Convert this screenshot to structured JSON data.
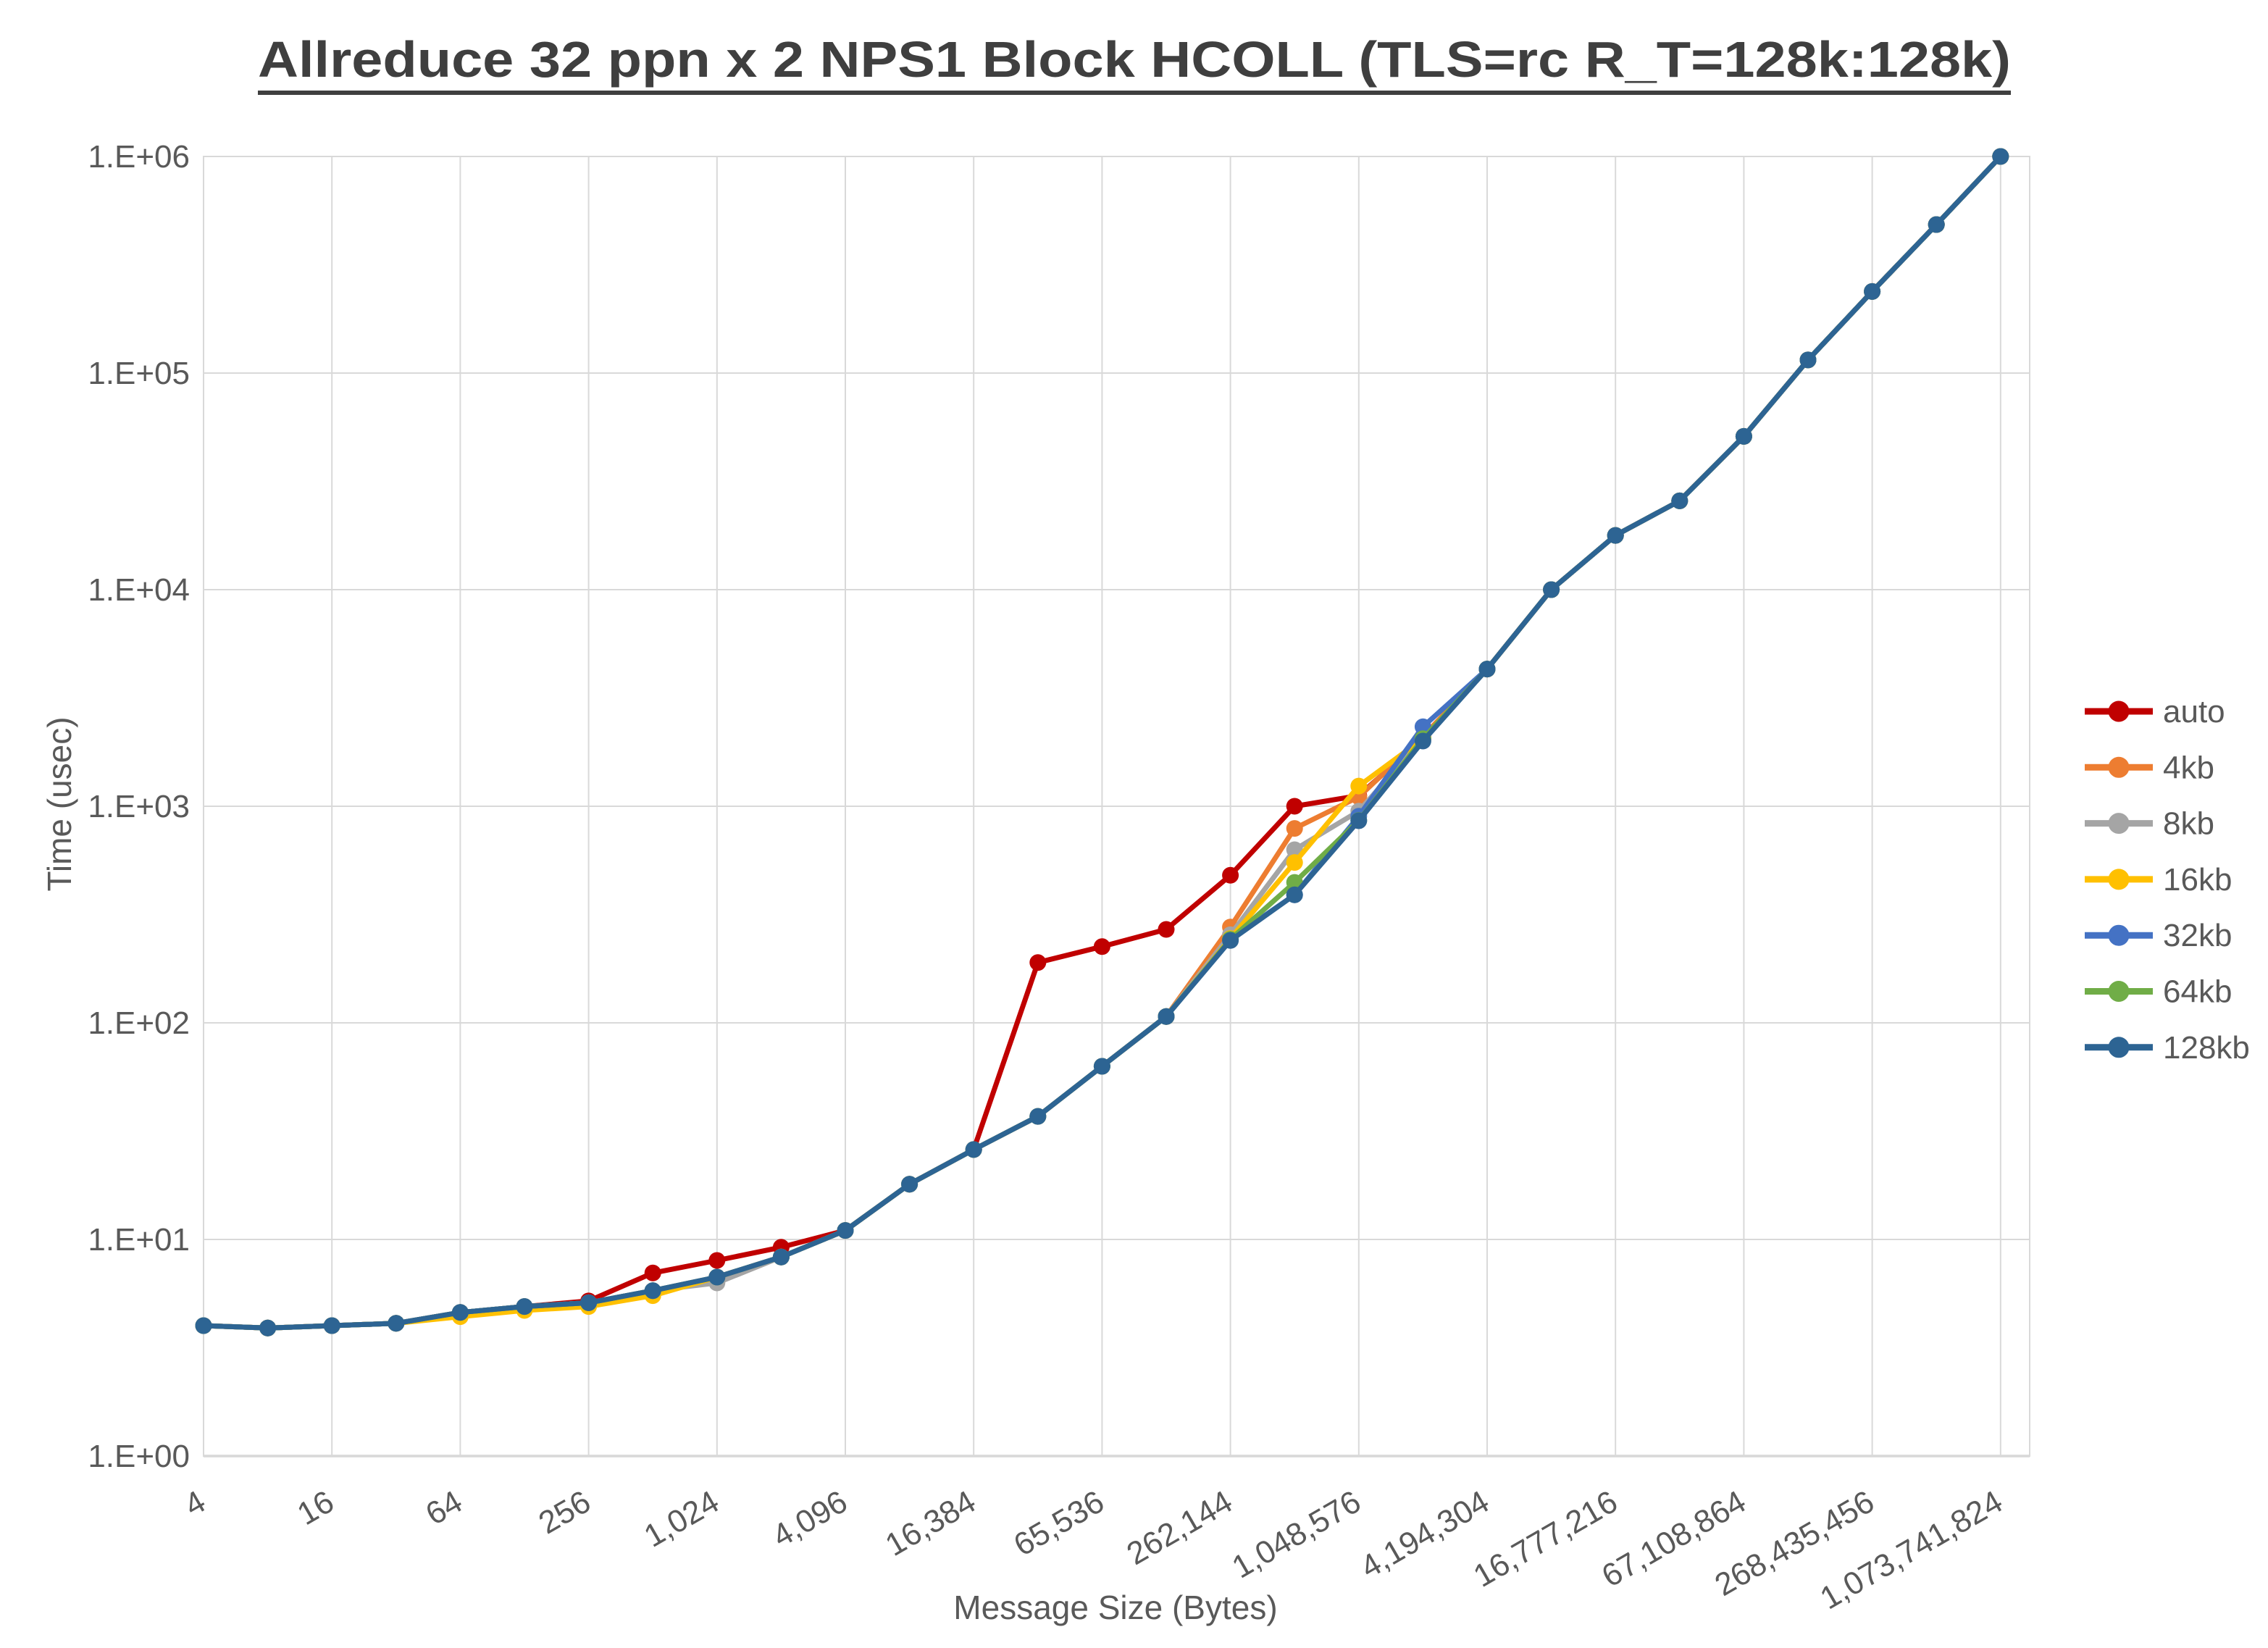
{
  "title": {
    "text": "Allreduce 32 ppn x 2 NPS1 Block HCOLL (TLS=rc R_T=128k:128k)",
    "color": "#3f3f3f",
    "underlined": true
  },
  "chart_data": {
    "type": "line",
    "title": "Allreduce 32 ppn x 2 NPS1 Block HCOLL (TLS=rc R_T=128k:128k)",
    "xlabel": "Message Size (Bytes)",
    "ylabel": "Time (usec)",
    "x_scale": "log2",
    "y_scale": "log10",
    "ylim": [
      1,
      1000000
    ],
    "grid": true,
    "legend_position": "right",
    "x_tick_labels": [
      "4",
      "16",
      "64",
      "256",
      "1,024",
      "4,096",
      "16,384",
      "65,536",
      "262,144",
      "1,048,576",
      "4,194,304",
      "16,777,216",
      "67,108,864",
      "268,435,456",
      "1,073,741,824"
    ],
    "x_tick_values": [
      4,
      16,
      64,
      256,
      1024,
      4096,
      16384,
      65536,
      262144,
      1048576,
      4194304,
      16777216,
      67108864,
      268435456,
      1073741824
    ],
    "y_tick_labels": [
      "1.E+00",
      "1.E+01",
      "1.E+02",
      "1.E+03",
      "1.E+04",
      "1.E+05",
      "1.E+06"
    ],
    "y_tick_values": [
      1,
      10,
      100,
      1000,
      10000,
      100000,
      1000000
    ],
    "x": [
      4,
      8,
      16,
      32,
      64,
      128,
      256,
      512,
      1024,
      2048,
      4096,
      8192,
      16384,
      32768,
      65536,
      131072,
      262144,
      524288,
      1048576,
      2097152,
      4194304,
      8388608,
      16777216,
      33554432,
      67108864,
      134217728,
      268435456,
      536870912,
      1073741824
    ],
    "series": [
      {
        "name": "auto",
        "color": "#C00000",
        "values": [
          4.0,
          3.9,
          4.0,
          4.1,
          4.6,
          4.9,
          5.2,
          7.0,
          8.0,
          9.2,
          11,
          18,
          26,
          190,
          225,
          270,
          480,
          1000,
          1120,
          2050,
          4300,
          10000,
          17800,
          25700,
          51000,
          115000,
          238000,
          485000,
          1000000
        ]
      },
      {
        "name": "4kb",
        "color": "#ED7D31",
        "values": [
          4.0,
          3.9,
          4.0,
          4.1,
          4.6,
          4.9,
          5.1,
          5.8,
          6.7,
          8.3,
          11,
          18,
          26,
          37,
          63,
          107,
          277,
          790,
          1105,
          2100,
          4300,
          10000,
          17800,
          25700,
          51000,
          115000,
          238000,
          485000,
          1000000
        ]
      },
      {
        "name": "8kb",
        "color": "#A5A5A5",
        "values": [
          4.0,
          3.9,
          4.0,
          4.1,
          4.6,
          4.9,
          5.1,
          5.8,
          6.3,
          8.3,
          11,
          18,
          26,
          37,
          63,
          107,
          255,
          630,
          950,
          2050,
          4300,
          10000,
          17800,
          25700,
          51000,
          115000,
          238000,
          485000,
          1000000
        ]
      },
      {
        "name": "16kb",
        "color": "#FFC000",
        "values": [
          4.0,
          3.9,
          4.0,
          4.1,
          4.4,
          4.7,
          4.9,
          5.5,
          6.7,
          8.3,
          11,
          18,
          26,
          37,
          63,
          107,
          245,
          550,
          1240,
          2050,
          4300,
          10000,
          17800,
          25700,
          51000,
          115000,
          238000,
          485000,
          1000000
        ]
      },
      {
        "name": "32kb",
        "color": "#4472C4",
        "values": [
          4.0,
          3.9,
          4.0,
          4.1,
          4.6,
          4.9,
          5.1,
          5.8,
          6.7,
          8.3,
          11,
          18,
          26,
          37,
          63,
          107,
          243,
          390,
          900,
          2330,
          4300,
          10000,
          17800,
          25700,
          51000,
          115000,
          238000,
          485000,
          1000000
        ]
      },
      {
        "name": "64kb",
        "color": "#70AD47",
        "values": [
          4.0,
          3.9,
          4.0,
          4.1,
          4.6,
          4.9,
          5.1,
          5.8,
          6.7,
          8.3,
          11,
          18,
          26,
          37,
          63,
          107,
          243,
          445,
          860,
          2050,
          4300,
          10000,
          17800,
          25700,
          51000,
          115000,
          238000,
          485000,
          1000000
        ]
      },
      {
        "name": "128kb",
        "color": "#2D6493",
        "values": [
          4.0,
          3.9,
          4.0,
          4.1,
          4.6,
          4.9,
          5.1,
          5.8,
          6.7,
          8.3,
          11,
          18,
          26,
          37,
          63,
          107,
          240,
          390,
          857,
          2000,
          4300,
          10000,
          17800,
          25700,
          51000,
          115000,
          238000,
          485000,
          1000000
        ]
      }
    ]
  },
  "legend": {
    "items": [
      {
        "label": "auto",
        "color": "#C00000"
      },
      {
        "label": "4kb",
        "color": "#ED7D31"
      },
      {
        "label": "8kb",
        "color": "#A5A5A5"
      },
      {
        "label": "16kb",
        "color": "#FFC000"
      },
      {
        "label": "32kb",
        "color": "#4472C4"
      },
      {
        "label": "64kb",
        "color": "#70AD47"
      },
      {
        "label": "128kb",
        "color": "#2D6493"
      }
    ]
  },
  "style": {
    "gridline_color": "#D9D9D9",
    "axis_line_color": "#BFBFBF",
    "tick_label_color": "#595959",
    "axis_title_color": "#595959",
    "background": "#FFFFFF"
  }
}
